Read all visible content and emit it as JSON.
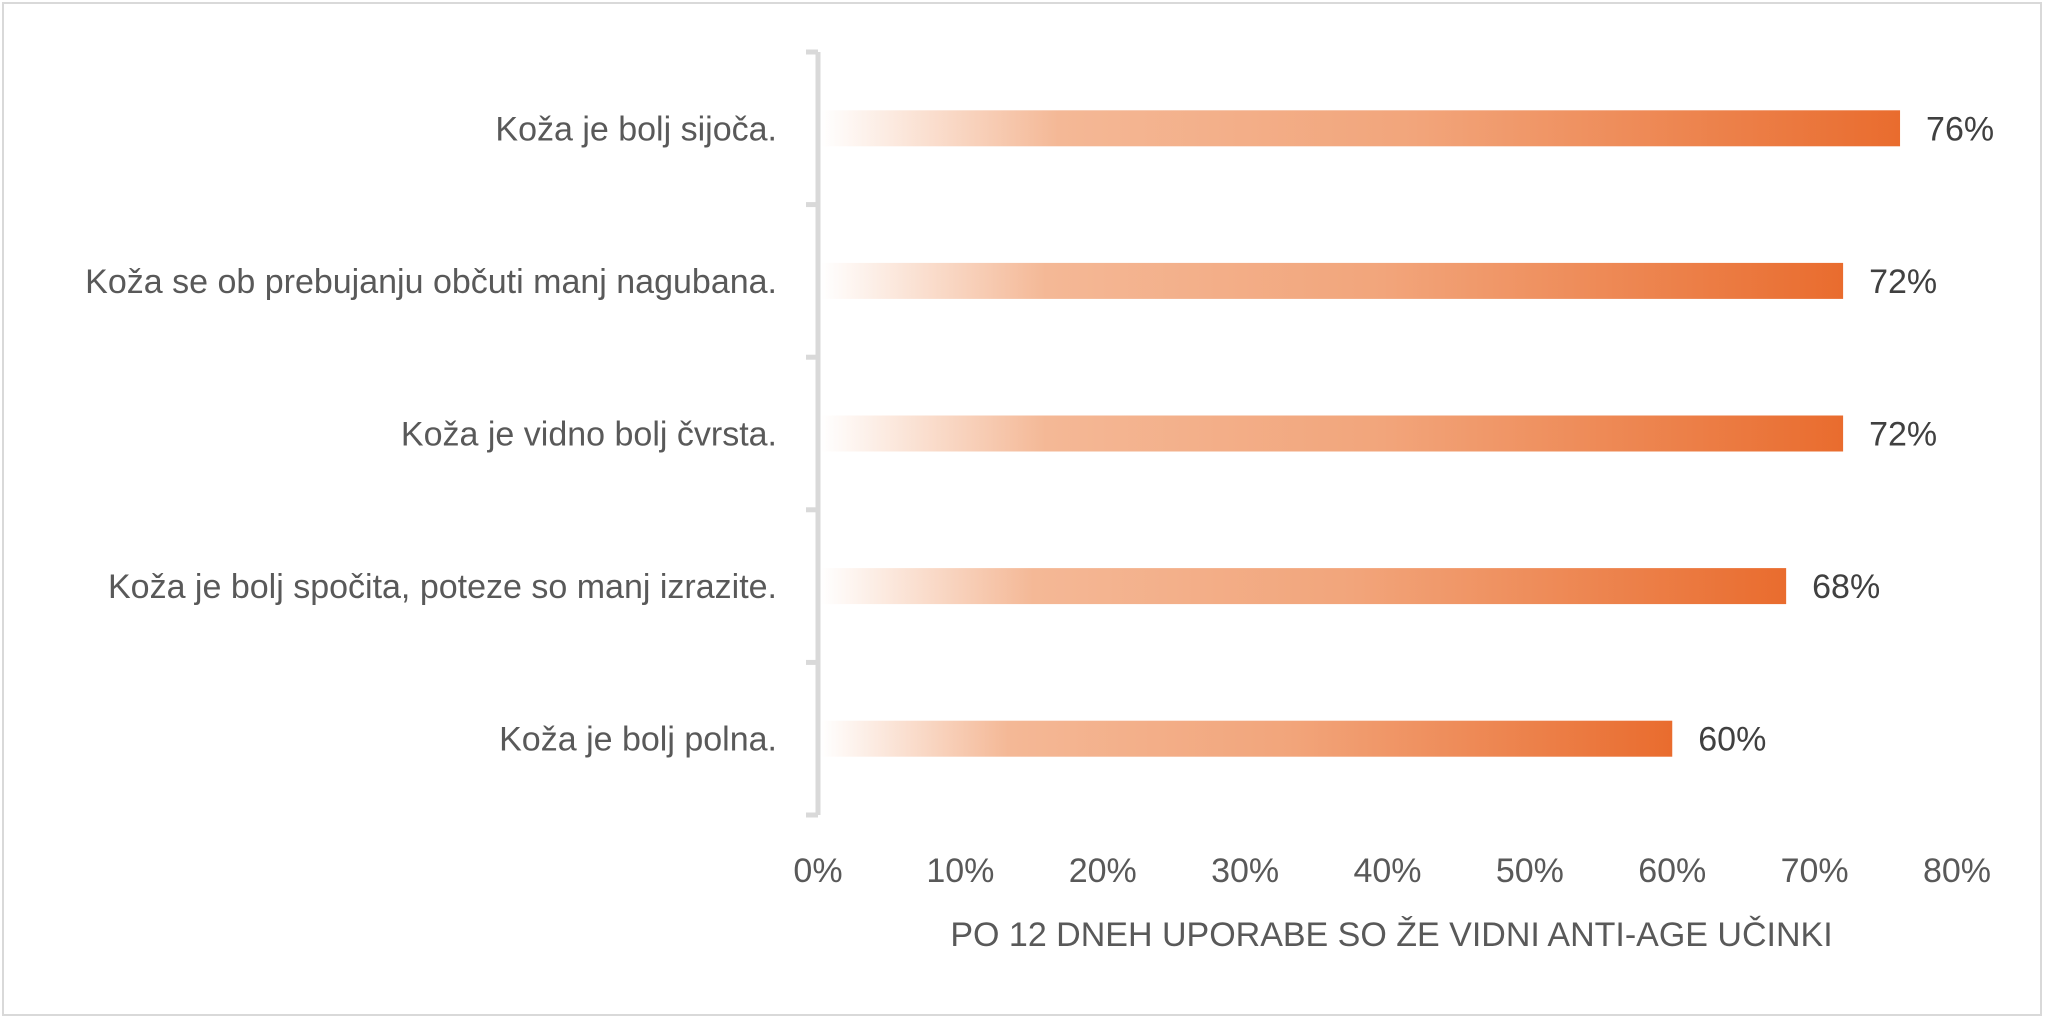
{
  "chart_data": {
    "type": "bar",
    "orientation": "horizontal",
    "categories": [
      "Koža je bolj sijoča.",
      "Koža se ob prebujanju občuti manj nagubana.",
      "Koža je vidno bolj čvrsta.",
      "Koža je bolj spočita, poteze so manj izrazite.",
      "Koža je bolj polna."
    ],
    "values": [
      76,
      72,
      72,
      68,
      60
    ],
    "data_labels": [
      "76%",
      "72%",
      "72%",
      "68%",
      "60%"
    ],
    "x_ticks": [
      "0%",
      "10%",
      "20%",
      "30%",
      "40%",
      "50%",
      "60%",
      "70%",
      "80%"
    ],
    "xlim": [
      0,
      80
    ],
    "xlabel": "PO 12 DNEH UPORABE SO ŽE VIDNI ANTI-AGE UČINKI",
    "ylabel": "",
    "title": "",
    "grid": false,
    "legend": "none",
    "colors": {
      "bar_start": "#ffffff",
      "bar_mid": "#f2a57b",
      "bar_end": "#e96c2e",
      "axis": "#d9d9d9",
      "text": "#595959"
    }
  }
}
